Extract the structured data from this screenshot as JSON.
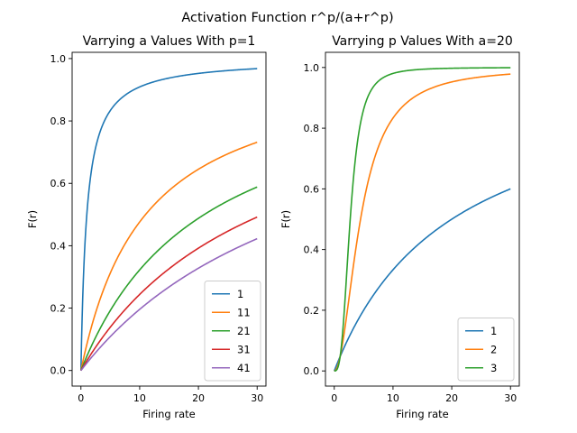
{
  "figure": {
    "suptitle": "Activation Function r^p/(a+r^p)"
  },
  "chart_data": [
    {
      "type": "line",
      "title": "Varrying a Values With p=1",
      "xlabel": "Firing rate",
      "ylabel": "F(r)",
      "xlim": [
        -1.5,
        31.5
      ],
      "ylim": [
        -0.05,
        1.02
      ],
      "xticks": [
        0,
        10,
        20,
        30
      ],
      "yticks": [
        0.0,
        0.2,
        0.4,
        0.6,
        0.8,
        1.0
      ],
      "xtick_labels": [
        "0",
        "10",
        "20",
        "30"
      ],
      "ytick_labels": [
        "0.0",
        "0.2",
        "0.4",
        "0.6",
        "0.8",
        "1.0"
      ],
      "grid": false,
      "legend": "lower-right",
      "function": "r^p/(a+r^p)",
      "p": 1,
      "x_range": [
        0,
        30
      ],
      "series": [
        {
          "name": "1",
          "a": 1,
          "color": "#1f77b4"
        },
        {
          "name": "11",
          "a": 11,
          "color": "#ff7f0e"
        },
        {
          "name": "21",
          "a": 21,
          "color": "#2ca02c"
        },
        {
          "name": "31",
          "a": 31,
          "color": "#d62728"
        },
        {
          "name": "41",
          "a": 41,
          "color": "#9467bd"
        }
      ]
    },
    {
      "type": "line",
      "title": "Varrying p Values With a=20",
      "xlabel": "Firing rate",
      "ylabel": "F(r)",
      "xlim": [
        -1.5,
        31.5
      ],
      "ylim": [
        -0.05,
        1.05
      ],
      "xticks": [
        0,
        10,
        20,
        30
      ],
      "yticks": [
        0.0,
        0.2,
        0.4,
        0.6,
        0.8,
        1.0
      ],
      "xtick_labels": [
        "0",
        "10",
        "20",
        "30"
      ],
      "ytick_labels": [
        "0.0",
        "0.2",
        "0.4",
        "0.6",
        "0.8",
        "1.0"
      ],
      "grid": false,
      "legend": "lower-right",
      "function": "r^p/(a+r^p)",
      "a": 20,
      "x_range": [
        0,
        30
      ],
      "series": [
        {
          "name": "1",
          "p": 1,
          "color": "#1f77b4"
        },
        {
          "name": "2",
          "p": 2,
          "color": "#ff7f0e"
        },
        {
          "name": "3",
          "p": 3,
          "color": "#2ca02c"
        }
      ]
    }
  ]
}
